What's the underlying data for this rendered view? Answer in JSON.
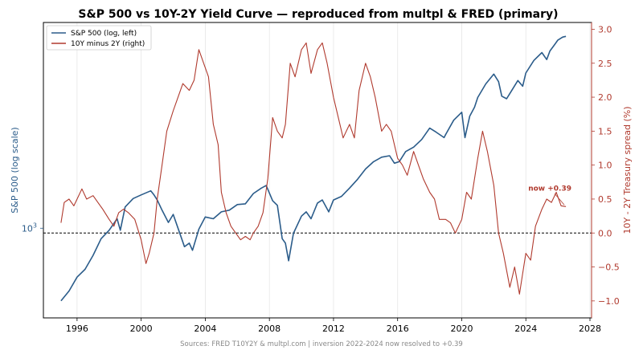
{
  "chart_data": {
    "type": "line",
    "title": "S&P 500 vs 10Y-2Y Yield Curve  —  reproduced from multpl & FRED (primary)",
    "footer": "Sources: FRED T10Y2Y & multpl.com  |  inversion 2022-2024 now resolved to +0.39",
    "y_left_label": "S&P 500 (log scale)",
    "y_right_label": "10Y - 2Y Treasury spread (%)",
    "x_ticks": [
      1996,
      2000,
      2004,
      2008,
      2012,
      2016,
      2020,
      2024,
      2028
    ],
    "y_left_scale": "log",
    "y_left_tick": {
      "value": 1000,
      "base": "10",
      "exp": "3"
    },
    "y_right_ticks": [
      -1.0,
      -0.5,
      0.0,
      0.5,
      1.0,
      1.5,
      2.0,
      2.5,
      3.0
    ],
    "xlim": [
      1993.9,
      2028.1
    ],
    "y_left_lim": [
      404,
      8000
    ],
    "y_right_lim": [
      -1.25,
      3.1
    ],
    "grid": "vertical",
    "legend_position": "top-left",
    "zero_line": {
      "value": 0.0,
      "style": "dashed"
    },
    "colors": {
      "sp500": "#2b5c8a",
      "spread": "#b03a2e"
    },
    "series": [
      {
        "name": "S&P 500 (log, left)",
        "axis": "left",
        "x": [
          1995.0,
          1995.5,
          1996.0,
          1996.5,
          1997.0,
          1997.5,
          1998.0,
          1998.5,
          1998.7,
          1999.0,
          1999.5,
          2000.0,
          2000.6,
          2000.8,
          2001.0,
          2001.3,
          2001.7,
          2002.0,
          2002.3,
          2002.7,
          2003.0,
          2003.2,
          2003.6,
          2004.0,
          2004.5,
          2005.0,
          2005.5,
          2006.0,
          2006.5,
          2007.0,
          2007.5,
          2007.8,
          2008.2,
          2008.5,
          2008.8,
          2009.0,
          2009.2,
          2009.5,
          2010.0,
          2010.3,
          2010.6,
          2011.0,
          2011.3,
          2011.7,
          2012.0,
          2012.5,
          2013.0,
          2013.5,
          2014.0,
          2014.5,
          2015.0,
          2015.5,
          2015.8,
          2016.1,
          2016.5,
          2017.0,
          2017.5,
          2018.0,
          2018.4,
          2018.9,
          2019.0,
          2019.5,
          2020.0,
          2020.2,
          2020.5,
          2020.8,
          2021.0,
          2021.5,
          2022.0,
          2022.3,
          2022.5,
          2022.8,
          2023.0,
          2023.5,
          2023.8,
          2024.0,
          2024.5,
          2025.0,
          2025.3,
          2025.5,
          2025.8,
          2026.0,
          2026.3,
          2026.5
        ],
        "values": [
          480,
          530,
          610,
          660,
          760,
          900,
          980,
          1100,
          980,
          1240,
          1350,
          1400,
          1460,
          1400,
          1330,
          1200,
          1060,
          1150,
          1000,
          830,
          860,
          800,
          990,
          1120,
          1100,
          1180,
          1200,
          1270,
          1280,
          1420,
          1500,
          1540,
          1320,
          1260,
          900,
          860,
          720,
          950,
          1130,
          1180,
          1100,
          1290,
          1330,
          1180,
          1330,
          1380,
          1500,
          1640,
          1820,
          1960,
          2050,
          2080,
          1930,
          1960,
          2170,
          2270,
          2450,
          2750,
          2640,
          2500,
          2580,
          2980,
          3230,
          2500,
          3100,
          3400,
          3750,
          4300,
          4750,
          4400,
          3800,
          3700,
          3900,
          4450,
          4200,
          4800,
          5450,
          5900,
          5500,
          6000,
          6400,
          6700,
          6900,
          6950
        ]
      },
      {
        "name": "10Y minus 2Y (right)",
        "axis": "right",
        "x": [
          1995.0,
          1995.2,
          1995.5,
          1995.8,
          1996.0,
          1996.3,
          1996.6,
          1997.0,
          1997.3,
          1997.6,
          1998.0,
          1998.3,
          1998.6,
          1998.9,
          1999.2,
          1999.6,
          2000.0,
          2000.3,
          2000.5,
          2000.8,
          2001.0,
          2001.3,
          2001.6,
          2002.0,
          2002.3,
          2002.6,
          2003.0,
          2003.3,
          2003.6,
          2003.9,
          2004.2,
          2004.5,
          2004.8,
          2005.0,
          2005.3,
          2005.6,
          2005.9,
          2006.2,
          2006.5,
          2006.8,
          2007.0,
          2007.3,
          2007.6,
          2007.9,
          2008.2,
          2008.5,
          2008.8,
          2009.0,
          2009.3,
          2009.6,
          2010.0,
          2010.3,
          2010.6,
          2011.0,
          2011.3,
          2011.6,
          2012.0,
          2012.3,
          2012.6,
          2013.0,
          2013.3,
          2013.6,
          2014.0,
          2014.3,
          2014.6,
          2015.0,
          2015.3,
          2015.6,
          2016.0,
          2016.3,
          2016.6,
          2017.0,
          2017.3,
          2017.6,
          2018.0,
          2018.3,
          2018.6,
          2019.0,
          2019.3,
          2019.6,
          2020.0,
          2020.3,
          2020.6,
          2021.0,
          2021.3,
          2021.6,
          2022.0,
          2022.3,
          2022.6,
          2023.0,
          2023.3,
          2023.6,
          2024.0,
          2024.3,
          2024.6,
          2025.0,
          2025.3,
          2025.6,
          2025.9,
          2026.2,
          2026.5
        ],
        "values": [
          0.15,
          0.45,
          0.5,
          0.4,
          0.5,
          0.65,
          0.5,
          0.55,
          0.45,
          0.35,
          0.2,
          0.1,
          0.3,
          0.35,
          0.3,
          0.2,
          -0.1,
          -0.45,
          -0.3,
          0.0,
          0.5,
          1.0,
          1.5,
          1.8,
          2.0,
          2.2,
          2.1,
          2.25,
          2.7,
          2.5,
          2.3,
          1.6,
          1.3,
          0.6,
          0.3,
          0.1,
          0.0,
          -0.1,
          -0.05,
          -0.1,
          0.0,
          0.1,
          0.3,
          0.8,
          1.7,
          1.5,
          1.4,
          1.6,
          2.5,
          2.3,
          2.7,
          2.8,
          2.35,
          2.7,
          2.8,
          2.5,
          2.0,
          1.7,
          1.4,
          1.6,
          1.4,
          2.1,
          2.5,
          2.3,
          2.0,
          1.5,
          1.6,
          1.5,
          1.1,
          1.0,
          0.85,
          1.2,
          1.0,
          0.8,
          0.6,
          0.5,
          0.2,
          0.2,
          0.15,
          0.0,
          0.2,
          0.6,
          0.5,
          1.1,
          1.5,
          1.2,
          0.7,
          0.0,
          -0.3,
          -0.8,
          -0.5,
          -0.9,
          -0.3,
          -0.4,
          0.1,
          0.35,
          0.5,
          0.45,
          0.6,
          0.4,
          0.39
        ]
      }
    ],
    "annotation": {
      "text": "now +0.39",
      "x": 2026.5,
      "y": 0.39
    }
  }
}
